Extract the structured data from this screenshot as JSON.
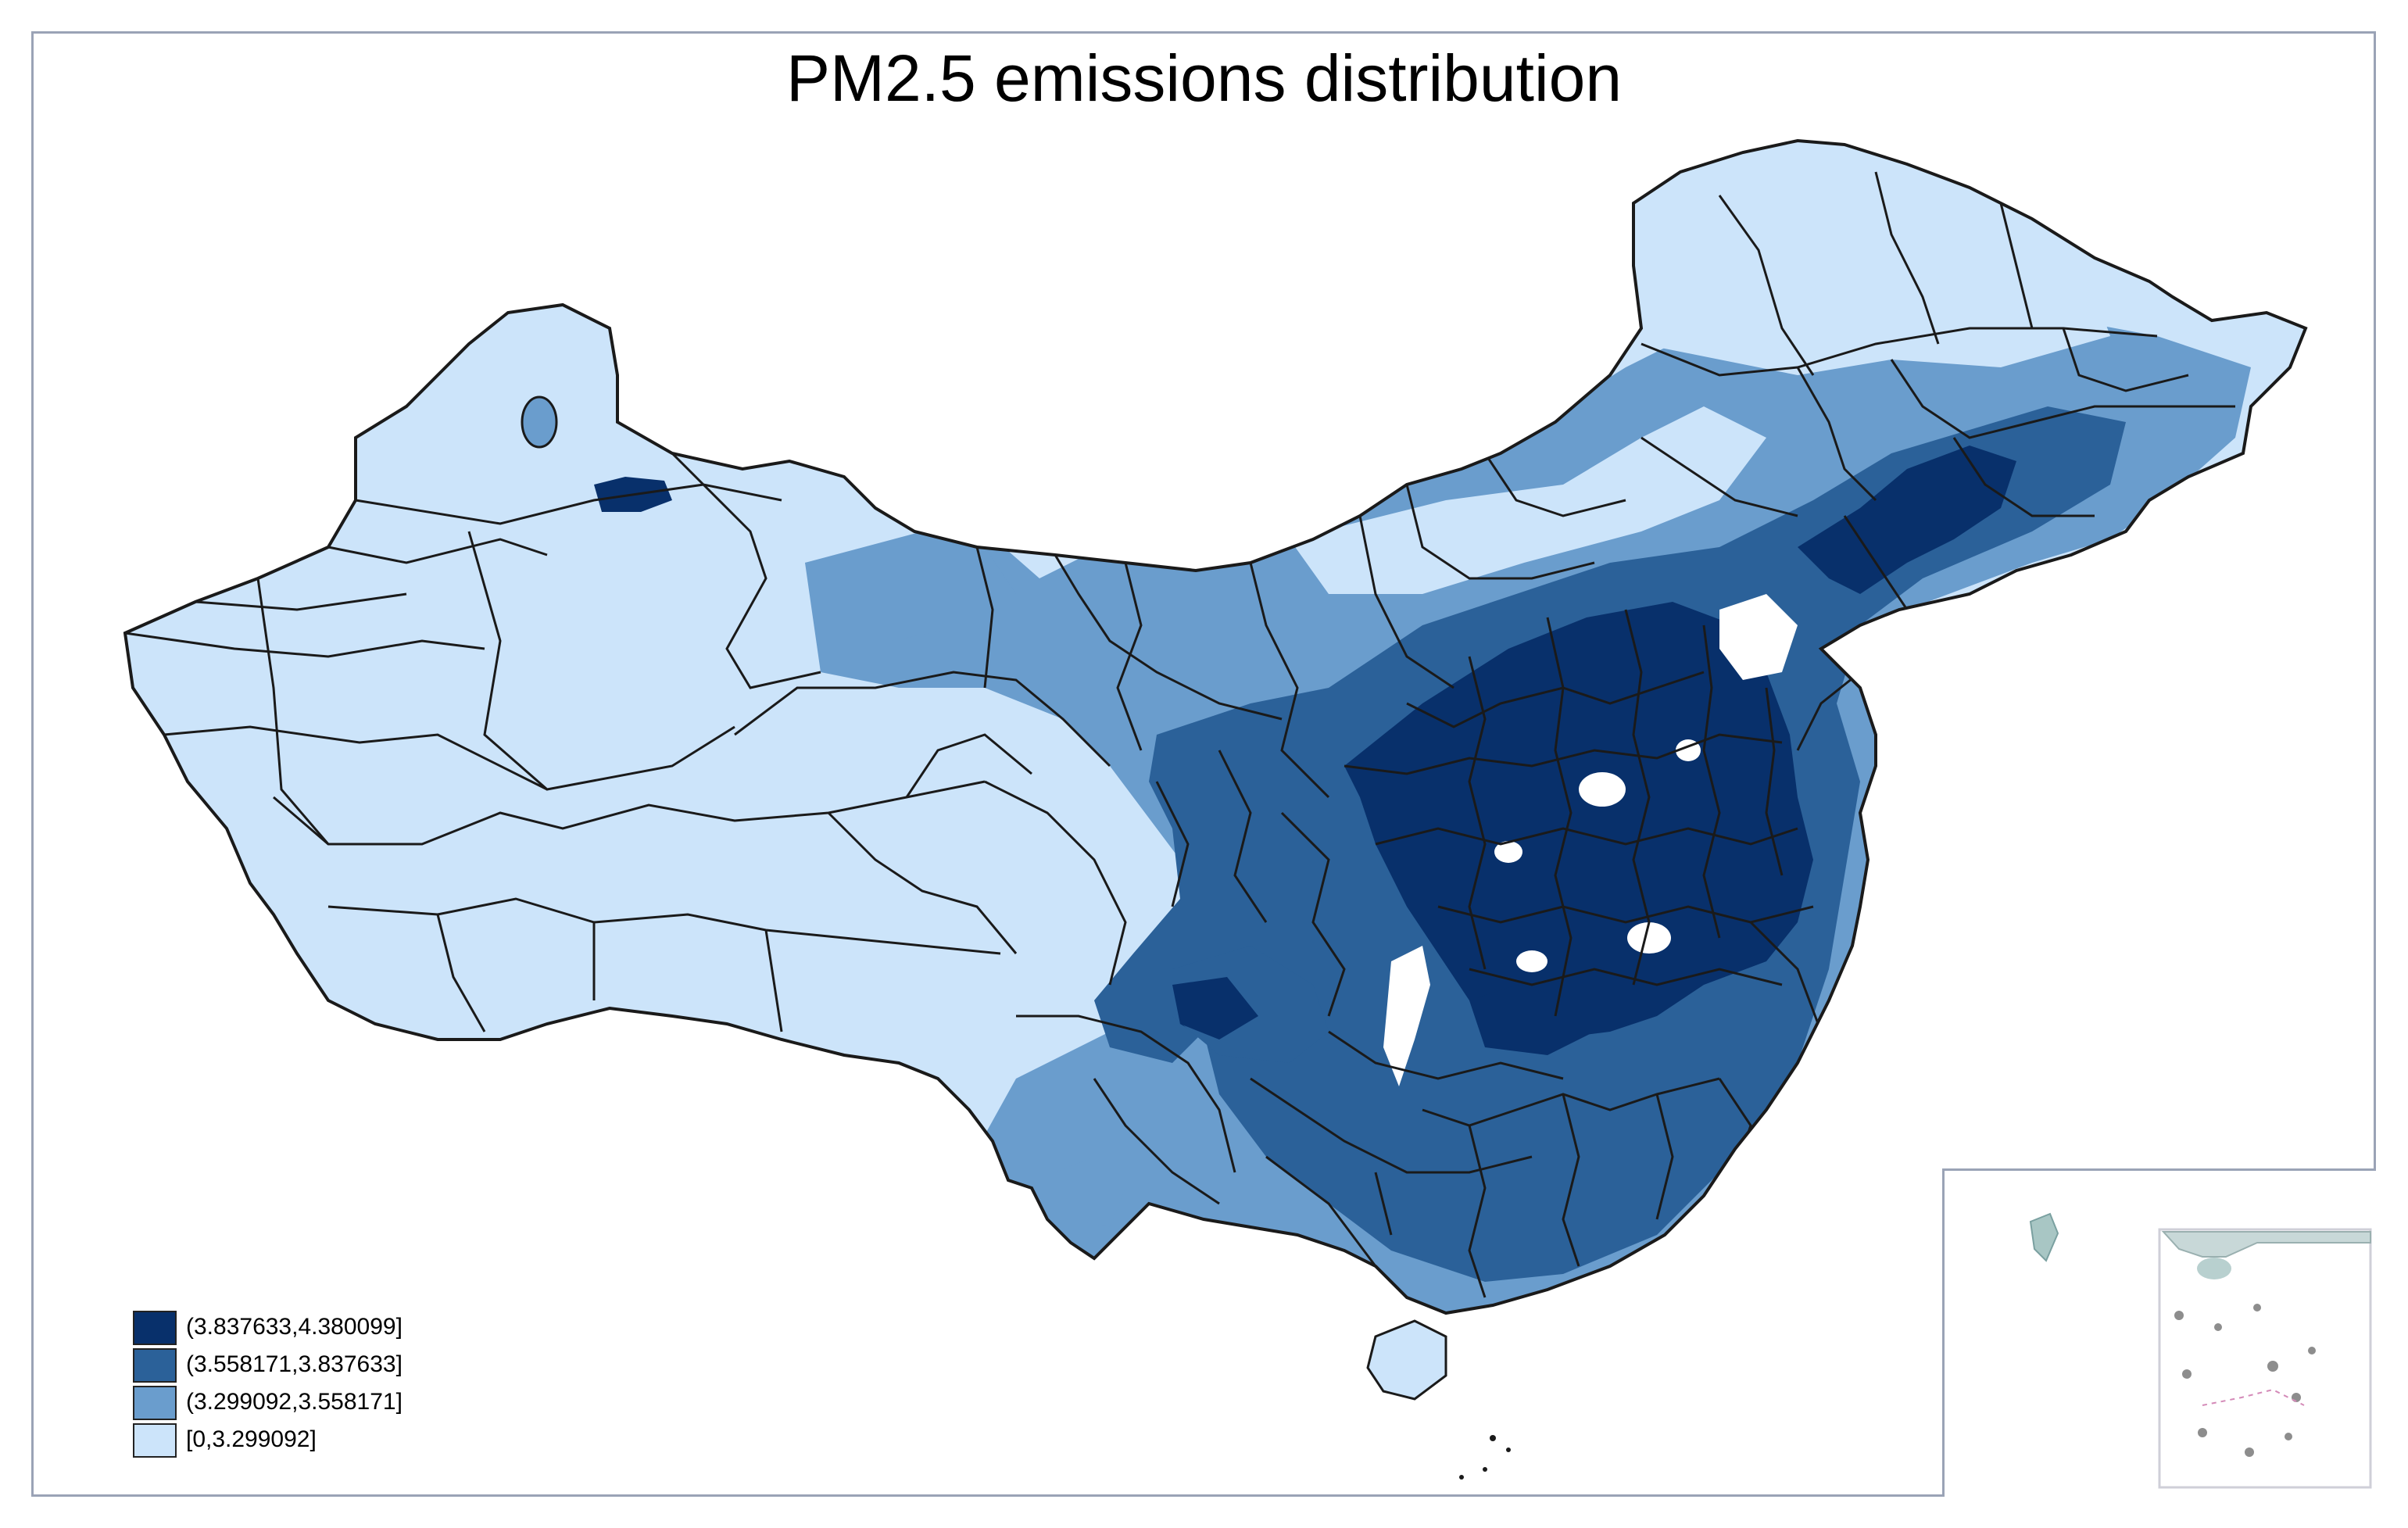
{
  "title": "PM2.5 emissions distribution",
  "legend": {
    "items": [
      {
        "label": "(3.837633,4.380099]",
        "color": "#08306b"
      },
      {
        "label": "(3.558171,3.837633]",
        "color": "#2b6199"
      },
      {
        "label": "(3.299092,3.558171]",
        "color": "#6a9dcd"
      },
      {
        "label": "[0,3.299092]",
        "color": "#cce4fa"
      }
    ]
  },
  "colors": {
    "class1": "#08306b",
    "class2": "#2b6199",
    "class3": "#6a9dcd",
    "class4": "#cce4fa",
    "border": "#1a1a1a",
    "frame": "#9aa3b6"
  }
}
